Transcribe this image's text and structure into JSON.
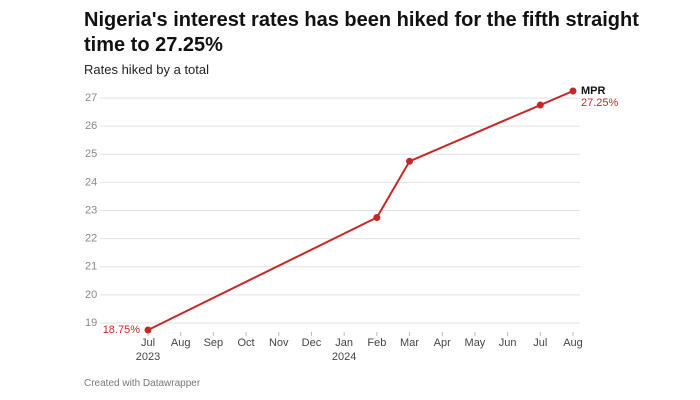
{
  "chart_data": {
    "type": "line",
    "title": "Nigeria's interest rates has been hiked for the fifth straight time to 27.25%",
    "subtitle": "Rates hiked by a total",
    "credit": "Created with Datawrapper",
    "x": [
      "2023-07",
      "2024-02",
      "2024-03",
      "2024-07",
      "2024-08"
    ],
    "series": [
      {
        "name": "MPR",
        "color": "#c62828",
        "values": [
          18.75,
          22.75,
          24.75,
          26.75,
          27.25
        ],
        "value_labels": [
          "18.75%",
          null,
          null,
          null,
          "27.25%"
        ]
      }
    ],
    "xlim": [
      "2023-07",
      "2024-08"
    ],
    "xticks": [
      {
        "value": "2023-07",
        "label": "Jul"
      },
      {
        "value": "2023-08",
        "label": "Aug"
      },
      {
        "value": "2023-09",
        "label": "Sep"
      },
      {
        "value": "2023-10",
        "label": "Oct"
      },
      {
        "value": "2023-11",
        "label": "Nov"
      },
      {
        "value": "2023-12",
        "label": "Dec"
      },
      {
        "value": "2024-01",
        "label": "Jan"
      },
      {
        "value": "2024-02",
        "label": "Feb"
      },
      {
        "value": "2024-03",
        "label": "Mar"
      },
      {
        "value": "2024-04",
        "label": "Apr"
      },
      {
        "value": "2024-05",
        "label": "May"
      },
      {
        "value": "2024-06",
        "label": "Jun"
      },
      {
        "value": "2024-07",
        "label": "Jul"
      },
      {
        "value": "2024-08",
        "label": "Aug"
      }
    ],
    "year_labels": [
      {
        "value": "2023-07",
        "label": "2023"
      },
      {
        "value": "2024-01",
        "label": "2024"
      }
    ],
    "ylim": [
      18.75,
      27.25
    ],
    "yticks": [
      19,
      20,
      21,
      22,
      23,
      24,
      25,
      26,
      27
    ],
    "grid": true
  }
}
